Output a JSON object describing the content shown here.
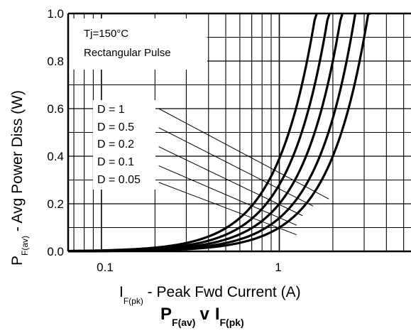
{
  "chart_data": {
    "type": "line",
    "caption": {
      "p": "P",
      "p_sub": "F(av)",
      "v": "v",
      "i": "I",
      "i_sub": "F(pk)"
    },
    "xlabel": {
      "main": "I",
      "sub": "F(pk)",
      "rest": " - Peak Fwd Current (A)"
    },
    "ylabel": {
      "main": "P",
      "sub": "F(av)",
      "rest": " - Avg Power Diss (W)"
    },
    "x_scale": "log",
    "xlim": [
      0.065,
      5.5
    ],
    "ylim": [
      0.0,
      1.0
    ],
    "y_ticks": [
      "0.0",
      "0.2",
      "0.4",
      "0.6",
      "0.8",
      "1.0"
    ],
    "x_ticks": [
      {
        "value": 0.1,
        "label": "0.1"
      },
      {
        "value": 1,
        "label": "1"
      }
    ],
    "grid": true,
    "annotations": [
      "Tj=150°C",
      "Rectangular Pulse"
    ],
    "duty_labels": [
      "D = 1",
      "D = 0.5",
      "D = 0.2",
      "D = 0.1",
      "D = 0.05"
    ],
    "series": [
      {
        "k": 0.39,
        "points": [
          [
            0.065,
            0.0
          ],
          [
            0.2,
            0.01
          ],
          [
            0.4,
            0.04
          ],
          [
            0.7,
            0.13
          ],
          [
            1.0,
            0.26
          ],
          [
            1.3,
            0.45
          ],
          [
            1.6,
            0.7
          ],
          [
            1.9,
            1.0
          ]
        ]
      },
      {
        "k": 0.28,
        "points": [
          [
            0.065,
            0.0
          ],
          [
            0.3,
            0.01
          ],
          [
            0.6,
            0.05
          ],
          [
            1.0,
            0.14
          ],
          [
            1.4,
            0.3
          ],
          [
            1.8,
            0.5
          ],
          [
            2.3,
            0.78
          ],
          [
            2.7,
            1.0
          ]
        ]
      },
      {
        "k": 0.2,
        "points": [
          [
            0.065,
            0.0
          ],
          [
            0.4,
            0.01
          ],
          [
            0.8,
            0.05
          ],
          [
            1.3,
            0.15
          ],
          [
            1.8,
            0.3
          ],
          [
            2.4,
            0.52
          ],
          [
            3.1,
            0.8
          ],
          [
            3.8,
            1.0
          ]
        ]
      },
      {
        "k": 0.14,
        "points": [
          [
            0.065,
            0.0
          ],
          [
            0.6,
            0.01
          ],
          [
            1.1,
            0.05
          ],
          [
            1.6,
            0.12
          ],
          [
            2.3,
            0.26
          ],
          [
            3.0,
            0.45
          ],
          [
            3.8,
            0.68
          ],
          [
            4.6,
            0.86
          ],
          [
            5.5,
            1.0
          ]
        ]
      },
      {
        "k": 0.1,
        "points": [
          [
            0.065,
            0.0
          ],
          [
            0.8,
            0.01
          ],
          [
            1.4,
            0.04
          ],
          [
            2.0,
            0.1
          ],
          [
            2.8,
            0.2
          ],
          [
            3.6,
            0.32
          ],
          [
            4.5,
            0.42
          ],
          [
            5.5,
            0.49
          ]
        ]
      }
    ],
    "guide_lines": [
      [
        [
          0.21,
          0.6
        ],
        [
          1.9,
          0.22
        ]
      ],
      [
        [
          0.21,
          0.52
        ],
        [
          1.55,
          0.19
        ]
      ],
      [
        [
          0.21,
          0.44
        ],
        [
          1.35,
          0.15
        ]
      ],
      [
        [
          0.21,
          0.36
        ],
        [
          1.25,
          0.11
        ]
      ],
      [
        [
          0.21,
          0.29
        ],
        [
          1.25,
          0.07
        ]
      ]
    ]
  }
}
